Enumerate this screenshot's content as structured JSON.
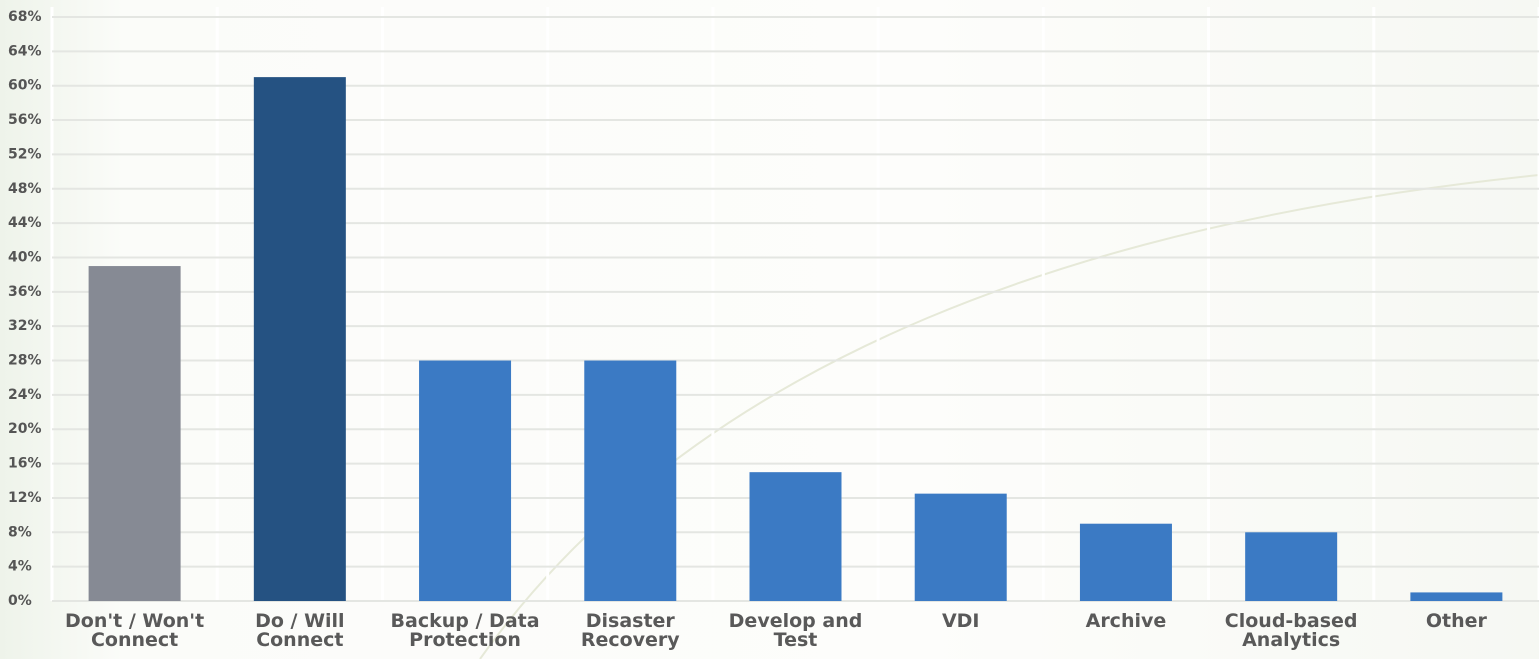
{
  "chart_data": {
    "type": "bar",
    "categories": [
      "Don't / Won't\nConnect",
      "Do / Will\nConnect",
      "Backup / Data\nProtection",
      "Disaster\nRecovery",
      "Develop and\nTest",
      "VDI",
      "Archive",
      "Cloud-based\nAnalytics",
      "Other"
    ],
    "values": [
      39,
      61,
      28,
      28,
      15,
      12.5,
      9,
      8,
      1
    ],
    "colors": [
      "#868a94",
      "#255282",
      "#3b7ac4",
      "#3b7ac4",
      "#3b7ac4",
      "#3b7ac4",
      "#3b7ac4",
      "#3b7ac4",
      "#3b7ac4"
    ],
    "ylim": [
      0,
      68
    ],
    "yticks": [
      {
        "value": 0,
        "label": "0%"
      },
      {
        "value": 4,
        "label": "4%"
      },
      {
        "value": 8,
        "label": "8%"
      },
      {
        "value": 12,
        "label": "12%"
      },
      {
        "value": 16,
        "label": "16%"
      },
      {
        "value": 20,
        "label": "20%"
      },
      {
        "value": 24,
        "label": "24%"
      },
      {
        "value": 28,
        "label": "28%"
      },
      {
        "value": 32,
        "label": "32%"
      },
      {
        "value": 36,
        "label": "36%"
      },
      {
        "value": 40,
        "label": "40%"
      },
      {
        "value": 44,
        "label": "44%"
      },
      {
        "value": 48,
        "label": "48%"
      },
      {
        "value": 52,
        "label": "52%"
      },
      {
        "value": 56,
        "label": "56%"
      },
      {
        "value": 60,
        "label": "60%"
      },
      {
        "value": 64,
        "label": "64%"
      },
      {
        "value": 68,
        "label": "68%"
      }
    ],
    "grid": true
  }
}
